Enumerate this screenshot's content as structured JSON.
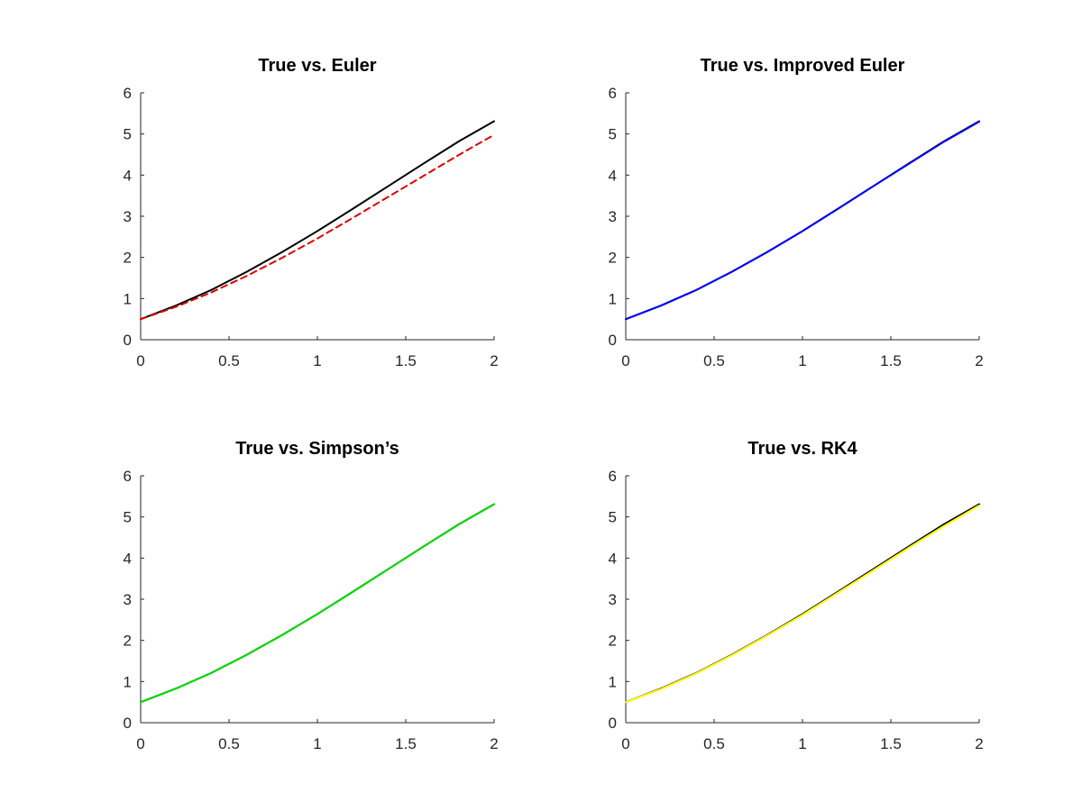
{
  "chart_data": [
    {
      "type": "line",
      "title": "True vs. Euler",
      "xlabel": "",
      "ylabel": "",
      "xlim": [
        0,
        2
      ],
      "ylim": [
        0,
        6
      ],
      "xticks": [
        0,
        0.5,
        1,
        1.5,
        2
      ],
      "yticks": [
        0,
        1,
        2,
        3,
        4,
        5,
        6
      ],
      "grid": false,
      "x": [
        0,
        0.2,
        0.4,
        0.6,
        0.8,
        1.0,
        1.2,
        1.4,
        1.6,
        1.8,
        2.0
      ],
      "series": [
        {
          "color": "#000000",
          "dash": "solid",
          "values": [
            0.5,
            0.83,
            1.21,
            1.65,
            2.13,
            2.64,
            3.18,
            3.73,
            4.28,
            4.82,
            5.31
          ]
        },
        {
          "color": "#dd0000",
          "dash": "dashed",
          "values": [
            0.5,
            0.8,
            1.15,
            1.55,
            1.99,
            2.46,
            2.96,
            3.47,
            3.98,
            4.49,
            4.98
          ]
        }
      ]
    },
    {
      "type": "line",
      "title": "True vs. Improved Euler",
      "xlabel": "",
      "ylabel": "",
      "xlim": [
        0,
        2
      ],
      "ylim": [
        0,
        6
      ],
      "xticks": [
        0,
        0.5,
        1,
        1.5,
        2
      ],
      "yticks": [
        0,
        1,
        2,
        3,
        4,
        5,
        6
      ],
      "grid": false,
      "x": [
        0,
        0.2,
        0.4,
        0.6,
        0.8,
        1.0,
        1.2,
        1.4,
        1.6,
        1.8,
        2.0
      ],
      "series": [
        {
          "color": "#000000",
          "dash": "solid",
          "values": [
            0.5,
            0.83,
            1.21,
            1.65,
            2.13,
            2.64,
            3.18,
            3.73,
            4.28,
            4.82,
            5.31
          ]
        },
        {
          "color": "#0000ff",
          "dash": "solid",
          "values": [
            0.5,
            0.83,
            1.21,
            1.65,
            2.13,
            2.64,
            3.18,
            3.73,
            4.27,
            4.81,
            5.3
          ]
        }
      ]
    },
    {
      "type": "line",
      "title": "True vs. Simpson’s",
      "xlabel": "",
      "ylabel": "",
      "xlim": [
        0,
        2
      ],
      "ylim": [
        0,
        6
      ],
      "xticks": [
        0,
        0.5,
        1,
        1.5,
        2
      ],
      "yticks": [
        0,
        1,
        2,
        3,
        4,
        5,
        6
      ],
      "grid": false,
      "x": [
        0,
        0.2,
        0.4,
        0.6,
        0.8,
        1.0,
        1.2,
        1.4,
        1.6,
        1.8,
        2.0
      ],
      "series": [
        {
          "color": "#000000",
          "dash": "solid",
          "values": [
            0.5,
            0.83,
            1.21,
            1.65,
            2.13,
            2.64,
            3.18,
            3.73,
            4.28,
            4.82,
            5.31
          ]
        },
        {
          "color": "#00dd00",
          "dash": "solid",
          "values": [
            0.5,
            0.83,
            1.21,
            1.65,
            2.13,
            2.64,
            3.18,
            3.73,
            4.28,
            4.82,
            5.31
          ]
        }
      ]
    },
    {
      "type": "line",
      "title": "True vs. RK4",
      "xlabel": "",
      "ylabel": "",
      "xlim": [
        0,
        2
      ],
      "ylim": [
        0,
        6
      ],
      "xticks": [
        0,
        0.5,
        1,
        1.5,
        2
      ],
      "yticks": [
        0,
        1,
        2,
        3,
        4,
        5,
        6
      ],
      "grid": false,
      "x": [
        0,
        0.2,
        0.4,
        0.6,
        0.8,
        1.0,
        1.2,
        1.4,
        1.6,
        1.8,
        2.0
      ],
      "series": [
        {
          "color": "#000000",
          "dash": "solid",
          "values": [
            0.5,
            0.83,
            1.21,
            1.65,
            2.13,
            2.64,
            3.18,
            3.73,
            4.28,
            4.82,
            5.31
          ]
        },
        {
          "color": "#ffff00",
          "dash": "solid",
          "values": [
            0.5,
            0.82,
            1.2,
            1.64,
            2.12,
            2.62,
            3.16,
            3.7,
            4.25,
            4.78,
            5.28
          ]
        }
      ]
    }
  ]
}
